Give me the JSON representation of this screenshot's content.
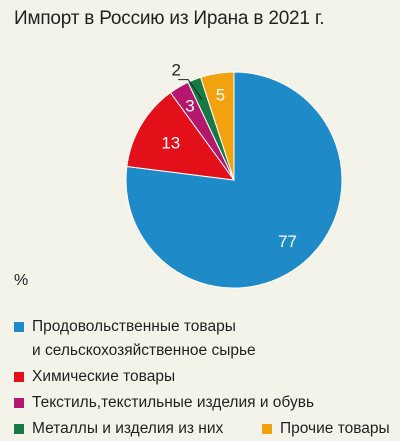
{
  "chart_data": {
    "type": "pie",
    "title": "Импорт в Россию из Ирана в 2021 г.",
    "unit": "%",
    "slices": [
      {
        "name": "Продовольственные товары и сельскохозяйственное сырье",
        "legend_lines": [
          "Продовольственные товары",
          "и сельскохозяйственное сырье"
        ],
        "value": 77,
        "color": "#1f8ac8"
      },
      {
        "name": "Химические товары",
        "legend_lines": [
          "Химические товары"
        ],
        "value": 13,
        "color": "#e3101a"
      },
      {
        "name": "Текстиль,текстильные изделия и обувь",
        "legend_lines": [
          "Текстиль,текстильные изделия и обувь"
        ],
        "value": 3,
        "color": "#b5176f"
      },
      {
        "name": "Металлы и изделия из них",
        "legend_lines": [
          "Металлы и изделия из них"
        ],
        "value": 2,
        "color": "#177a45"
      },
      {
        "name": "Прочие товары",
        "legend_lines": [
          "Прочие товары"
        ],
        "value": 5,
        "color": "#f2a20f"
      }
    ],
    "legend_placement": "bottom"
  }
}
